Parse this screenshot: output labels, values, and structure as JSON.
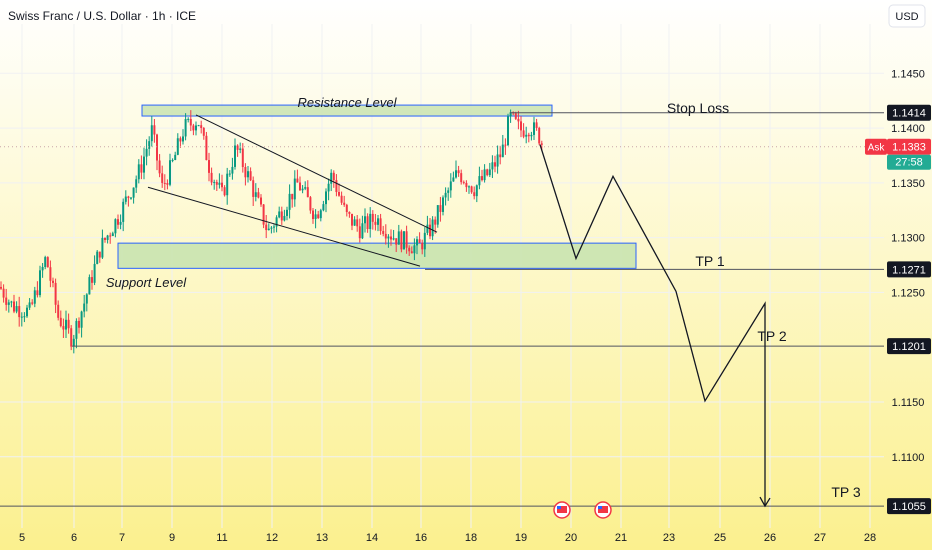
{
  "header": {
    "title": "Swiss Franc / U.S. Dollar · 1h · ICE",
    "currency": "USD"
  },
  "chart_data": {
    "type": "candlestick",
    "title": "Swiss Franc / U.S. Dollar · 1h · ICE",
    "ylim": [
      1.1035,
      1.1495
    ],
    "y_ticks": [
      "1.1450",
      "1.1400",
      "1.1350",
      "1.1300",
      "1.1250",
      "1.1150",
      "1.1100"
    ],
    "x_ticks": [
      "5",
      "6",
      "7",
      "9",
      "11",
      "12",
      "13",
      "14",
      "16",
      "18",
      "19",
      "20",
      "21",
      "23",
      "25",
      "26",
      "27",
      "28"
    ],
    "level_tags": [
      {
        "label": "1.1414",
        "value": 1.1414
      },
      {
        "label": "1.1271",
        "value": 1.1271
      },
      {
        "label": "1.1201",
        "value": 1.1201
      },
      {
        "label": "1.1055",
        "value": 1.1055
      }
    ],
    "ask": {
      "label": "Ask",
      "price": "1.1383",
      "value": 1.1383,
      "countdown": "27:58"
    },
    "annotations": {
      "resistance": "Resistance Level",
      "support": "Support Level",
      "stop_loss": "Stop Loss",
      "tp1": "TP 1",
      "tp2": "TP 2",
      "tp3": "TP 3"
    },
    "zones": [
      {
        "name": "resistance",
        "from": 1.1411,
        "to": 1.1421
      },
      {
        "name": "support",
        "from": 1.1272,
        "to": 1.1295
      }
    ],
    "projection": [
      1.1385,
      1.1281,
      1.1356,
      1.1251,
      1.1151,
      1.124,
      1.1055
    ],
    "colors": {
      "bull": "#089981",
      "bear": "#f23645",
      "bg_top": "#ffffff",
      "bg_bottom": "#fbf08e",
      "zone": "#c9e3b0",
      "zone_border": "#2962ff",
      "tag": "#131722",
      "ask_red": "#f23645"
    }
  }
}
